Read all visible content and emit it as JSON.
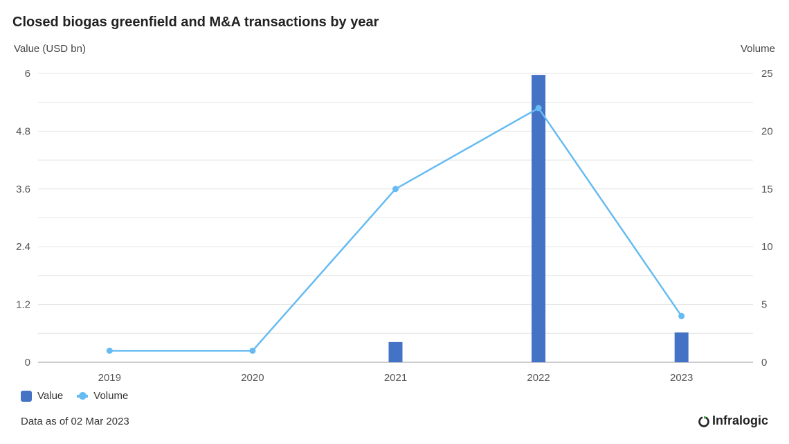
{
  "chart_data": {
    "type": "bar",
    "title": "Closed biogas greenfield and M&A transactions by year",
    "categories": [
      "2019",
      "2020",
      "2021",
      "2022",
      "2023"
    ],
    "series": [
      {
        "name": "Value",
        "type": "bar",
        "axis": "left",
        "color": "#4472c4",
        "values": [
          0,
          0,
          0.42,
          5.97,
          0.62
        ]
      },
      {
        "name": "Volume",
        "type": "line",
        "axis": "right",
        "color": "#66bbf2",
        "values": [
          1,
          1,
          15,
          22,
          4
        ]
      }
    ],
    "y_left": {
      "label": "Value (USD bn)",
      "ticks": [
        "0",
        "1.2",
        "2.4",
        "3.6",
        "4.8",
        "6"
      ],
      "range": [
        0,
        6
      ]
    },
    "y_right": {
      "label": "Volume",
      "ticks": [
        "0",
        "5",
        "10",
        "15",
        "20",
        "25"
      ],
      "range": [
        0,
        25
      ]
    },
    "grid": true,
    "legend_position": "bottom-left"
  },
  "footnote": "Data as of 02 Mar 2023",
  "logo": {
    "text": "Infralogic",
    "icon": "infralogic-logo-icon"
  }
}
